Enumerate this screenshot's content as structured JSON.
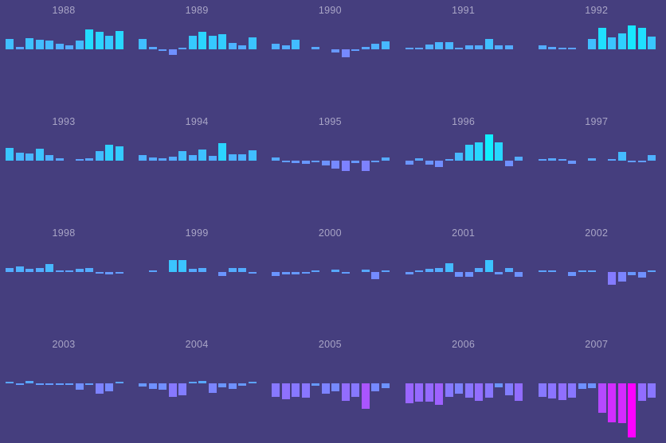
{
  "chart_data": {
    "type": "bar",
    "layout": "small_multiples",
    "grid": {
      "rows": 4,
      "cols": 5
    },
    "title": "",
    "xlabel": "",
    "ylabel": "",
    "bars_per_panel": 12,
    "x_tick_labels": [],
    "axes_visible": false,
    "grid_lines": false,
    "legend": false,
    "ylim": [
      -70,
      35
    ],
    "baseline": 0,
    "background_color": "#453E7E",
    "panel_label_color": "#A9A5C6",
    "color_scale": {
      "type": "cool",
      "high_color": "#00FFFF",
      "low_color": "#FF00FF",
      "domain": [
        -68,
        40
      ]
    },
    "panels": [
      {
        "label": "1988",
        "values": [
          13,
          3,
          14,
          12,
          11,
          7,
          5,
          11,
          25,
          22,
          17,
          23
        ]
      },
      {
        "label": "1989",
        "values": [
          13,
          3,
          -1,
          -7,
          2,
          17,
          22,
          17,
          19,
          8,
          5,
          15
        ]
      },
      {
        "label": "1990",
        "values": [
          7,
          5,
          12,
          0,
          3,
          0,
          -4,
          -10,
          -1,
          3,
          7,
          10
        ]
      },
      {
        "label": "1991",
        "values": [
          1,
          1,
          6,
          9,
          9,
          2,
          5,
          5,
          13,
          5,
          5,
          0
        ]
      },
      {
        "label": "1992",
        "values": [
          5,
          3,
          1,
          1,
          0,
          13,
          27,
          15,
          20,
          30,
          27,
          16
        ]
      },
      {
        "label": "1993",
        "values": [
          16,
          10,
          9,
          15,
          7,
          3,
          0,
          1,
          3,
          12,
          20,
          18
        ]
      },
      {
        "label": "1994",
        "values": [
          7,
          4,
          3,
          5,
          12,
          7,
          14,
          6,
          22,
          8,
          8,
          13
        ]
      },
      {
        "label": "1995",
        "values": [
          4,
          -1,
          -3,
          -4,
          -1,
          -6,
          -10,
          -13,
          -3,
          -13,
          -1,
          4
        ]
      },
      {
        "label": "1996",
        "values": [
          -5,
          3,
          -5,
          -8,
          2,
          10,
          20,
          23,
          33,
          23,
          -7,
          5
        ]
      },
      {
        "label": "1997",
        "values": [
          1,
          3,
          1,
          -4,
          0,
          3,
          0,
          2,
          11,
          -1,
          -1,
          7
        ]
      },
      {
        "label": "1998",
        "values": [
          5,
          7,
          4,
          5,
          10,
          1,
          1,
          4,
          5,
          -1,
          -3,
          -1
        ]
      },
      {
        "label": "1999",
        "values": [
          0,
          2,
          0,
          15,
          15,
          4,
          5,
          0,
          -5,
          5,
          5,
          -1
        ]
      },
      {
        "label": "2000",
        "values": [
          -5,
          -3,
          -3,
          -2,
          1,
          0,
          3,
          -1,
          0,
          3,
          -9,
          1
        ]
      },
      {
        "label": "2001",
        "values": [
          -3,
          1,
          4,
          5,
          11,
          -6,
          -6,
          5,
          15,
          -3,
          5,
          -6
        ]
      },
      {
        "label": "2002",
        "values": [
          1,
          1,
          0,
          -5,
          1,
          1,
          0,
          -16,
          -12,
          -4,
          -7,
          1
        ]
      },
      {
        "label": "2003",
        "values": [
          2,
          -1,
          3,
          -1,
          -2,
          -1,
          -1,
          -8,
          -1,
          -13,
          -10,
          1
        ]
      },
      {
        "label": "2004",
        "values": [
          -4,
          -7,
          -8,
          -17,
          -15,
          1,
          3,
          -12,
          -5,
          -7,
          -3,
          1
        ]
      },
      {
        "label": "2005",
        "values": [
          -17,
          -20,
          -17,
          -18,
          -3,
          -13,
          -10,
          -22,
          -17,
          -32,
          -10,
          -6
        ]
      },
      {
        "label": "2006",
        "values": [
          -25,
          -23,
          -23,
          -27,
          -17,
          -13,
          -18,
          -22,
          -18,
          -5,
          -15,
          -22
        ]
      },
      {
        "label": "2007",
        "values": [
          -17,
          -19,
          -21,
          -18,
          -7,
          -6,
          -37,
          -49,
          -50,
          -68,
          -22,
          -18
        ]
      }
    ]
  }
}
